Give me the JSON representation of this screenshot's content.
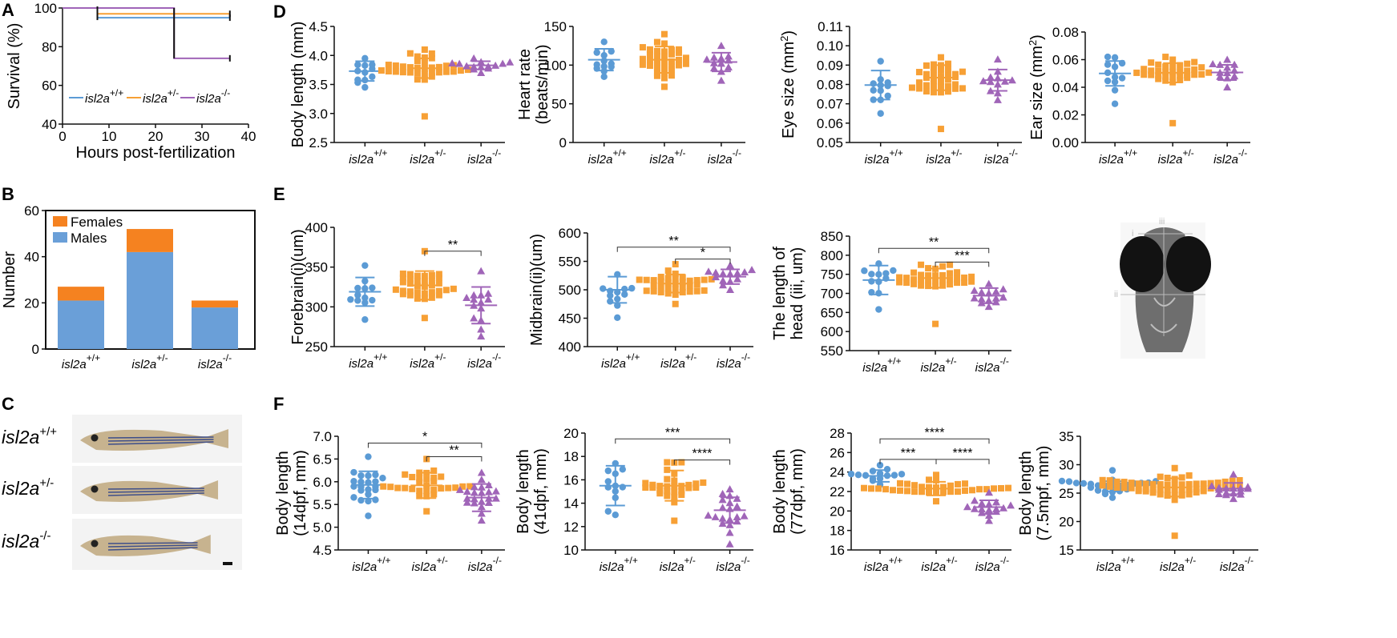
{
  "colors": {
    "wt": "#5b9bd5",
    "het": "#f7a035",
    "hom": "#a065b8",
    "males": "#6a9fd8",
    "females": "#f58220"
  },
  "text": {
    "categories": [
      "isl2a",
      "isl2a",
      "isl2a"
    ],
    "genotype_sups": [
      "+/+",
      "+/-",
      "-/-"
    ],
    "legend_A": [
      "isl2a",
      "isl2a",
      "isl2a"
    ],
    "legend_B": [
      "Females",
      "Males"
    ],
    "fish_labels": [
      "isl2a",
      "isl2a",
      "isl2a"
    ],
    "fish_sups": [
      "+/+",
      "+/-",
      "-/-"
    ],
    "head_roman": [
      "i",
      "ii",
      "iii"
    ]
  },
  "chart_data": [
    {
      "id": "A",
      "panel_label": "A",
      "type": "line",
      "title": "",
      "xlabel": "Hours post-fertilization",
      "ylabel": "Survival (%)",
      "xlim": [
        0,
        40
      ],
      "ylim": [
        40,
        100
      ],
      "xticks": [
        0,
        10,
        20,
        30,
        40
      ],
      "yticks": [
        40,
        60,
        80,
        100
      ],
      "series": [
        {
          "name": "isl2a+/+",
          "points": [
            [
              0,
              100
            ],
            [
              7.5,
              100
            ],
            [
              7.5,
              95
            ],
            [
              36,
              95
            ]
          ]
        },
        {
          "name": "isl2a+/-",
          "points": [
            [
              0,
              100
            ],
            [
              7.5,
              100
            ],
            [
              7.5,
              97
            ],
            [
              36,
              97
            ]
          ]
        },
        {
          "name": "isl2a-/-",
          "points": [
            [
              0,
              100
            ],
            [
              24,
              100
            ],
            [
              24,
              74
            ],
            [
              36,
              74
            ]
          ]
        }
      ]
    },
    {
      "id": "B",
      "panel_label": "B",
      "type": "bar",
      "title": "",
      "xlabel": "",
      "ylabel": "Number",
      "ylim": [
        0,
        60
      ],
      "yticks": [
        0,
        20,
        40,
        60
      ],
      "stacked": true,
      "series": [
        {
          "name": "Males",
          "values": [
            21,
            42,
            18
          ]
        },
        {
          "name": "Females",
          "values": [
            6,
            10,
            3
          ]
        }
      ]
    },
    {
      "id": "D1",
      "panel_label": "D",
      "type": "scatter",
      "ylabel": "Body  length (mm)",
      "ylim": [
        2.5,
        4.5
      ],
      "yticks": [
        "2.5",
        "3.0",
        "3.5",
        "4.0",
        "4.5"
      ],
      "groups": [
        {
          "mean": 3.73,
          "sd": 0.17,
          "n": 12,
          "min": 3.45,
          "max": 3.95
        },
        {
          "mean": 3.78,
          "sd": 0.17,
          "n": 35,
          "min": 2.95,
          "max": 4.1
        },
        {
          "mean": 3.83,
          "sd": 0.07,
          "n": 14,
          "min": 3.7,
          "max": 3.95
        }
      ],
      "brackets": []
    },
    {
      "id": "D2",
      "type": "scatter",
      "ylabel": "Heart  rate\n(beats/min)",
      "ylim": [
        0,
        150
      ],
      "yticks": [
        "0",
        "50",
        "100",
        "150"
      ],
      "groups": [
        {
          "mean": 107,
          "sd": 14,
          "n": 12,
          "min": 85,
          "max": 130
        },
        {
          "mean": 107,
          "sd": 17,
          "n": 35,
          "min": 72,
          "max": 140
        },
        {
          "mean": 104,
          "sd": 12,
          "n": 12,
          "min": 80,
          "max": 125
        }
      ],
      "brackets": []
    },
    {
      "id": "D3",
      "type": "scatter",
      "ylabel": "Eye size (mm²)",
      "ylim": [
        0.05,
        0.11
      ],
      "yticks": [
        "0.05",
        "0.06",
        "0.07",
        "0.08",
        "0.09",
        "0.10",
        "0.11"
      ],
      "groups": [
        {
          "mean": 0.0797,
          "sd": 0.0075,
          "n": 12,
          "min": 0.065,
          "max": 0.092
        },
        {
          "mean": 0.0835,
          "sd": 0.0065,
          "n": 35,
          "min": 0.057,
          "max": 0.094
        },
        {
          "mean": 0.0822,
          "sd": 0.0055,
          "n": 12,
          "min": 0.072,
          "max": 0.093
        }
      ],
      "brackets": []
    },
    {
      "id": "D4",
      "type": "scatter",
      "ylabel": "Ear size (mm²)",
      "ylim": [
        0,
        0.08
      ],
      "yticks": [
        "0.00",
        "0.02",
        "0.04",
        "0.06",
        "0.08"
      ],
      "groups": [
        {
          "mean": 0.05,
          "sd": 0.009,
          "n": 12,
          "min": 0.028,
          "max": 0.062
        },
        {
          "mean": 0.0505,
          "sd": 0.007,
          "n": 35,
          "min": 0.014,
          "max": 0.062
        },
        {
          "mean": 0.0507,
          "sd": 0.0055,
          "n": 12,
          "min": 0.04,
          "max": 0.06
        }
      ],
      "brackets": []
    },
    {
      "id": "E1",
      "panel_label": "E",
      "type": "scatter",
      "ylabel": "Forebrain(i)(um)",
      "ylim": [
        250,
        400
      ],
      "yticks": [
        "250",
        "300",
        "350",
        "400"
      ],
      "groups": [
        {
          "mean": 319,
          "sd": 18,
          "n": 12,
          "min": 284,
          "max": 352
        },
        {
          "mean": 327,
          "sd": 18,
          "n": 35,
          "min": 286,
          "max": 370
        },
        {
          "mean": 302,
          "sd": 23,
          "n": 14,
          "min": 263,
          "max": 345
        }
      ],
      "brackets": [
        {
          "from": 1,
          "to": 2,
          "y": 370,
          "label": "**"
        }
      ]
    },
    {
      "id": "E2",
      "type": "scatter",
      "ylabel": "Midbrain(ii)(um)",
      "ylim": [
        400,
        600
      ],
      "yticks": [
        "400",
        "450",
        "500",
        "550",
        "600"
      ],
      "groups": [
        {
          "mean": 500,
          "sd": 23,
          "n": 12,
          "min": 451,
          "max": 527
        },
        {
          "mean": 511,
          "sd": 16,
          "n": 35,
          "min": 475,
          "max": 545
        },
        {
          "mean": 523,
          "sd": 13,
          "n": 14,
          "min": 500,
          "max": 543
        }
      ],
      "brackets": [
        {
          "from": 0,
          "to": 2,
          "y": 575,
          "label": "**"
        },
        {
          "from": 1,
          "to": 2,
          "y": 554,
          "label": "*"
        }
      ]
    },
    {
      "id": "E3",
      "type": "scatter",
      "ylabel": "The length of\nhead (iii, um)",
      "ylim": [
        550,
        850
      ],
      "yticks": [
        "550",
        "600",
        "650",
        "700",
        "750",
        "800",
        "850"
      ],
      "groups": [
        {
          "mean": 735,
          "sd": 38,
          "n": 12,
          "min": 658,
          "max": 778
        },
        {
          "mean": 740,
          "sd": 25,
          "n": 35,
          "min": 620,
          "max": 775
        },
        {
          "mean": 694,
          "sd": 20,
          "n": 14,
          "min": 665,
          "max": 725
        }
      ],
      "brackets": [
        {
          "from": 0,
          "to": 2,
          "y": 818,
          "label": "**"
        },
        {
          "from": 1,
          "to": 2,
          "y": 782,
          "label": "***"
        }
      ]
    },
    {
      "id": "F1",
      "panel_label": "F",
      "type": "scatter",
      "ylabel": "Body length\n(14dpf, mm)",
      "ylim": [
        4.5,
        7.0
      ],
      "yticks": [
        "4.5",
        "5.0",
        "5.5",
        "6.0",
        "6.5",
        "7.0"
      ],
      "groups": [
        {
          "mean": 5.93,
          "sd": 0.3,
          "n": 22,
          "min": 5.25,
          "max": 6.55
        },
        {
          "mean": 5.92,
          "sd": 0.28,
          "n": 30,
          "min": 5.35,
          "max": 6.5
        },
        {
          "mean": 5.65,
          "sd": 0.3,
          "n": 22,
          "min": 5.15,
          "max": 6.2
        }
      ],
      "brackets": [
        {
          "from": 0,
          "to": 2,
          "y": 6.85,
          "label": "*"
        },
        {
          "from": 1,
          "to": 2,
          "y": 6.55,
          "label": "**"
        }
      ]
    },
    {
      "id": "F2",
      "type": "scatter",
      "ylabel": "Body length\n(41dpf, mm)",
      "ylim": [
        10,
        20
      ],
      "yticks": [
        "10",
        "12",
        "14",
        "16",
        "18",
        "20"
      ],
      "groups": [
        {
          "mean": 15.5,
          "sd": 1.7,
          "n": 12,
          "min": 13.0,
          "max": 17.4
        },
        {
          "mean": 15.5,
          "sd": 1.3,
          "n": 30,
          "min": 12.5,
          "max": 17.5
        },
        {
          "mean": 13.4,
          "sd": 1.1,
          "n": 20,
          "min": 10.5,
          "max": 15.2
        }
      ],
      "brackets": [
        {
          "from": 0,
          "to": 2,
          "y": 19.5,
          "label": "***"
        },
        {
          "from": 1,
          "to": 2,
          "y": 17.7,
          "label": "****"
        }
      ]
    },
    {
      "id": "F3",
      "type": "scatter",
      "ylabel": "Body length\n(77dpf, mm)",
      "ylim": [
        16,
        28
      ],
      "yticks": [
        "16",
        "18",
        "20",
        "22",
        "24",
        "26",
        "28"
      ],
      "groups": [
        {
          "mean": 23.6,
          "sd": 0.6,
          "n": 14,
          "min": 22.7,
          "max": 24.7
        },
        {
          "mean": 22.3,
          "sd": 0.7,
          "n": 35,
          "min": 21.0,
          "max": 23.7
        },
        {
          "mean": 20.4,
          "sd": 0.7,
          "n": 16,
          "min": 19.0,
          "max": 21.9
        }
      ],
      "brackets": [
        {
          "from": 0,
          "to": 2,
          "y": 27.4,
          "label": "****"
        },
        {
          "from": 0,
          "to": 1,
          "y": 25.3,
          "label": "***"
        },
        {
          "from": 1,
          "to": 2,
          "y": 25.3,
          "label": "****"
        }
      ]
    },
    {
      "id": "F4",
      "type": "scatter",
      "ylabel": "Body length\n(7.5mpf, mm)",
      "ylim": [
        15,
        35
      ],
      "yticks": [
        "15",
        "20",
        "25",
        "30",
        "35"
      ],
      "groups": [
        {
          "mean": 26.2,
          "sd": 0.9,
          "n": 24,
          "min": 24.2,
          "max": 29.0
        },
        {
          "mean": 26.0,
          "sd": 1.6,
          "n": 60,
          "min": 17.5,
          "max": 29.4
        },
        {
          "mean": 25.8,
          "sd": 1.0,
          "n": 16,
          "min": 24.0,
          "max": 28.3
        }
      ],
      "brackets": []
    }
  ]
}
